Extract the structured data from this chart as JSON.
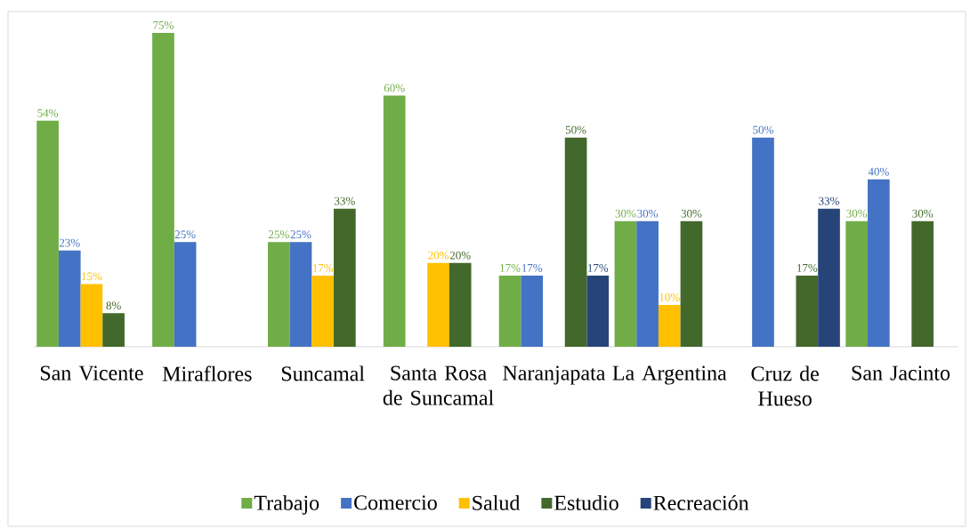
{
  "chart_data": {
    "type": "bar",
    "categories": [
      "San Vicente",
      "Miraflores",
      "Suncamal",
      "Santa Rosa de Suncamal",
      "Naranjapata",
      "La Argentina",
      "Cruz de Hueso",
      "San Jacinto"
    ],
    "series": [
      {
        "name": "Trabajo",
        "color": "#70ad47",
        "values": [
          54,
          75,
          25,
          60,
          17,
          30,
          null,
          30
        ],
        "value_labels": [
          "54%",
          "75%",
          "25%",
          "60%",
          "17%",
          "30%",
          null,
          "30%"
        ]
      },
      {
        "name": "Comercio",
        "color": "#4472c4",
        "values": [
          23,
          25,
          25,
          null,
          17,
          30,
          50,
          40
        ],
        "value_labels": [
          "23%",
          "25%",
          "25%",
          null,
          "17%",
          "30%",
          "50%",
          "40%"
        ]
      },
      {
        "name": "Salud",
        "color": "#ffc000",
        "values": [
          15,
          null,
          17,
          20,
          null,
          10,
          null,
          null
        ],
        "value_labels": [
          "15%",
          null,
          "17%",
          "20%",
          null,
          "10%",
          null,
          null
        ]
      },
      {
        "name": "Estudio",
        "color": "#43682b",
        "values": [
          8,
          null,
          33,
          20,
          50,
          30,
          17,
          30
        ],
        "value_labels": [
          "8%",
          null,
          "33%",
          "20%",
          "50%",
          "30%",
          "17%",
          "30%"
        ]
      },
      {
        "name": "Recreación",
        "color": "#264478",
        "values": [
          null,
          null,
          null,
          null,
          17,
          null,
          33,
          null
        ],
        "value_labels": [
          null,
          null,
          null,
          null,
          "17%",
          null,
          "33%",
          null
        ]
      }
    ],
    "legend": "bottom"
  }
}
